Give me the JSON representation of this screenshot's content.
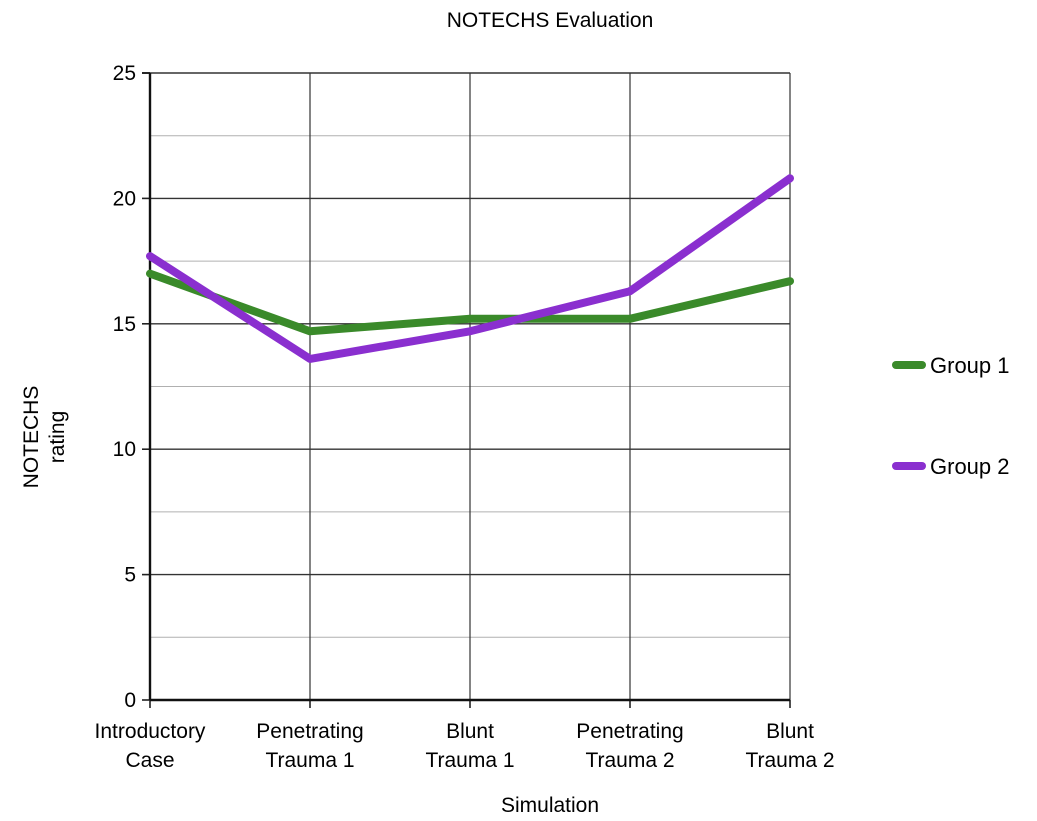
{
  "chart_data": {
    "type": "line",
    "title": "NOTECHS Evaluation",
    "xlabel": "Simulation",
    "ylabel": [
      "NOTECHS",
      "rating"
    ],
    "categories": [
      [
        "Introductory",
        "Case"
      ],
      [
        "Penetrating",
        "Trauma 1"
      ],
      [
        "Blunt",
        "Trauma 1"
      ],
      [
        "Penetrating",
        "Trauma 2"
      ],
      [
        "Blunt",
        "Trauma 2"
      ]
    ],
    "ylim": [
      0,
      25
    ],
    "yticks": [
      0,
      5,
      10,
      15,
      20,
      25
    ],
    "minor_step": 2.5,
    "grid": true,
    "legend": "right",
    "series": [
      {
        "name": "Group 1",
        "color": "#3a8a2a",
        "values": [
          17.0,
          14.7,
          15.2,
          15.2,
          16.7
        ]
      },
      {
        "name": "Group 2",
        "color": "#8a2fcf",
        "values": [
          17.7,
          13.6,
          14.7,
          16.3,
          20.8
        ]
      }
    ]
  }
}
